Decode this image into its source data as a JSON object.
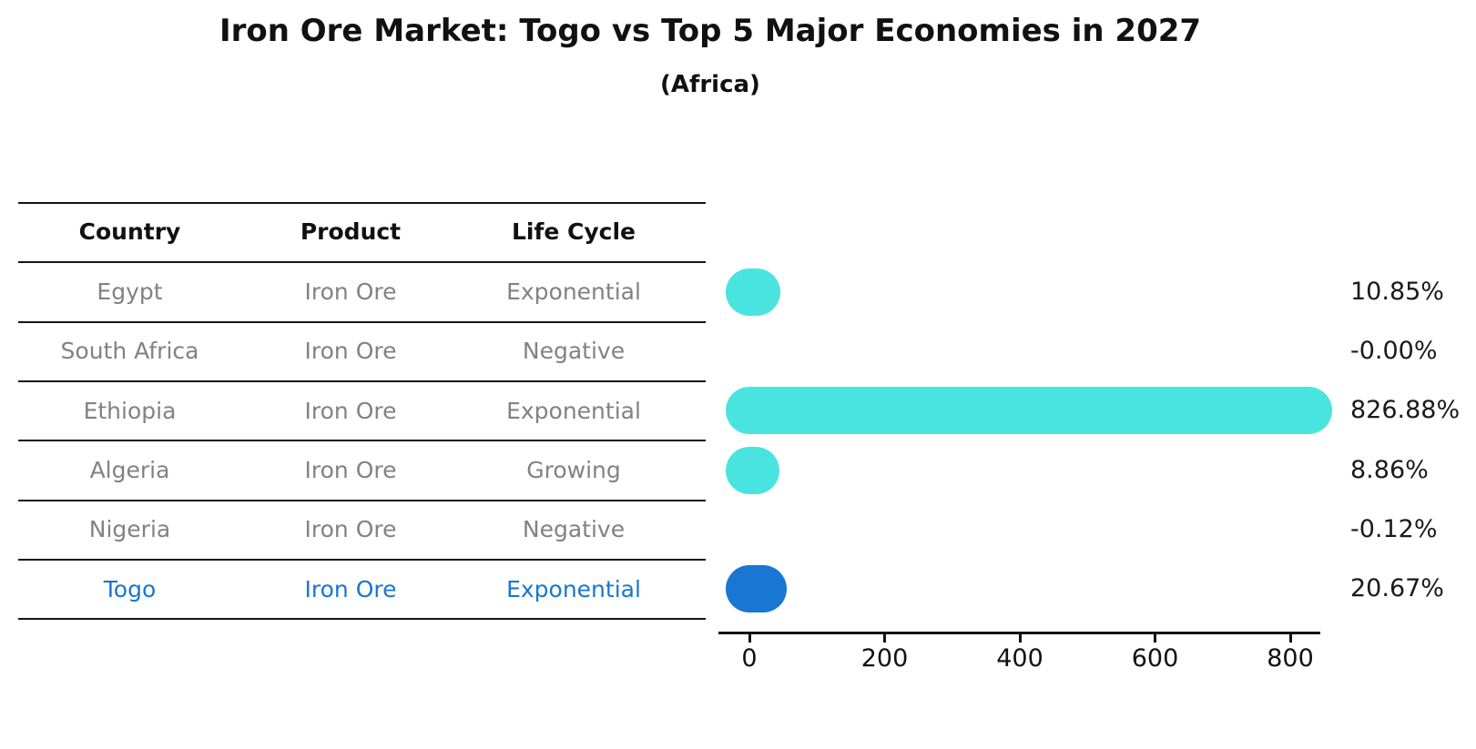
{
  "title": "Iron Ore Market: Togo vs Top 5 Major Economies in 2027",
  "subtitle": "(Africa)",
  "table": {
    "headers": [
      "Country",
      "Product",
      "Life Cycle"
    ],
    "rows": [
      {
        "country": "Egypt",
        "product": "Iron Ore",
        "life_cycle": "Exponential"
      },
      {
        "country": "South Africa",
        "product": "Iron Ore",
        "life_cycle": "Negative"
      },
      {
        "country": "Ethiopia",
        "product": "Iron Ore",
        "life_cycle": "Exponential"
      },
      {
        "country": "Algeria",
        "product": "Iron Ore",
        "life_cycle": "Growing"
      },
      {
        "country": "Nigeria",
        "product": "Iron Ore",
        "life_cycle": "Negative"
      },
      {
        "country": "Togo",
        "product": "Iron Ore",
        "life_cycle": "Exponential"
      }
    ],
    "highlighted_row": "Togo"
  },
  "chart_data": {
    "type": "bar",
    "orientation": "horizontal",
    "title": "Iron Ore Market: Togo vs Top 5 Major Economies in 2027",
    "subtitle": "(Africa)",
    "categories": [
      "Egypt",
      "South Africa",
      "Ethiopia",
      "Algeria",
      "Nigeria",
      "Togo"
    ],
    "values": [
      10.85,
      -0.0,
      826.88,
      8.86,
      -0.12,
      20.67
    ],
    "value_labels": [
      "10.85%",
      "-0.00%",
      "826.88%",
      "8.86%",
      "-0.12%",
      "20.67%"
    ],
    "unit": "%",
    "x_ticks": [
      0,
      200,
      400,
      600,
      800
    ],
    "xlim": [
      -45,
      880
    ],
    "grid": false,
    "legend": false,
    "highlight_category": "Togo"
  },
  "colors": {
    "bar_default": "#4AE4E0",
    "bar_highlight": "#1976D2",
    "highlight_text": "#1976D2",
    "muted_text": "#828282",
    "axis": "#111111"
  }
}
